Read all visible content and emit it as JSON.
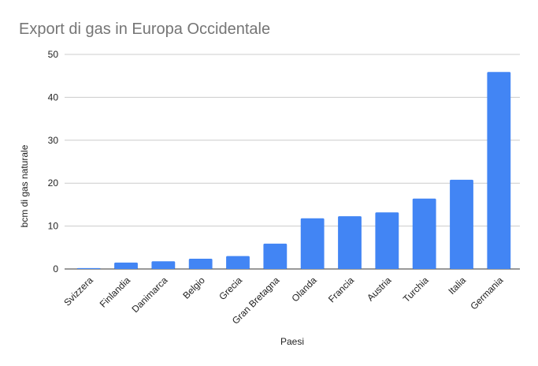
{
  "chart_data": {
    "type": "bar",
    "title": "Export di gas in Europa Occidentale",
    "xlabel": "Paesi",
    "ylabel": "bcm di gas naturale",
    "categories": [
      "Svizzera",
      "Finlandia",
      "Danimarca",
      "Belgio",
      "Grecia",
      "Gran Bretagna",
      "Olanda",
      "Francia",
      "Austria",
      "Turchia",
      "Italia",
      "Germania"
    ],
    "values": [
      0.2,
      1.5,
      1.8,
      2.4,
      3.0,
      5.9,
      11.8,
      12.3,
      13.2,
      16.4,
      20.8,
      45.9
    ],
    "ylim": [
      0,
      50
    ],
    "yticks": [
      "0",
      "10",
      "20",
      "30",
      "40",
      "50"
    ],
    "grid": true,
    "bar_color": "#4285f4"
  }
}
